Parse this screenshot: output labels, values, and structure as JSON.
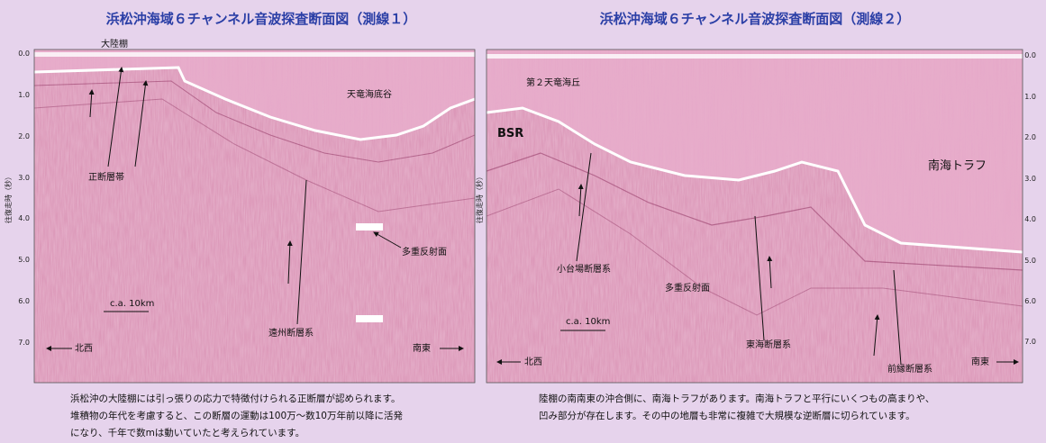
{
  "panels": [
    {
      "title": "浜松沖海域６チャンネル音波探査断面図（測線１）",
      "axis_label": "往復走時（秒）",
      "yticks": [
        "0.0",
        "1.0",
        "2.0",
        "3.0",
        "4.0",
        "5.0",
        "6.0",
        "7.0"
      ],
      "labels": [
        "大陸棚",
        "天竜海底谷",
        "正断層帯",
        "多重反射面",
        "遠州断層系",
        "c.a. 10km",
        "北西",
        "南東"
      ],
      "caption": [
        "浜松沖の大陸棚には引っ張りの応力で特徴付けられる正断層が認められます。",
        "堆積物の年代を考慮すると、この断層の運動は100万～数10万年前以降に活発",
        "になり、千年で数mは動いていたと考えられています。"
      ]
    },
    {
      "title": "浜松沖海域６チャンネル音波探査断面図（測線２）",
      "axis_label": "往復走時（秒）",
      "yticks": [
        "0.0",
        "1.0",
        "2.0",
        "3.0",
        "4.0",
        "5.0",
        "6.0",
        "7.0"
      ],
      "labels": [
        "第２天竜海丘",
        "BSR",
        "南海トラフ",
        "小台場断層系",
        "多重反射面",
        "東海断層系",
        "前縁断層系",
        "c.a. 10km",
        "北西",
        "南東"
      ],
      "caption": [
        "陸棚の南南東の沖合側に、南海トラフがあります。南海トラフと平行にいくつもの高まりや、",
        "凹み部分が存在します。その中の地層も非常に複雑で大規模な逆断層に切られています。"
      ]
    }
  ]
}
